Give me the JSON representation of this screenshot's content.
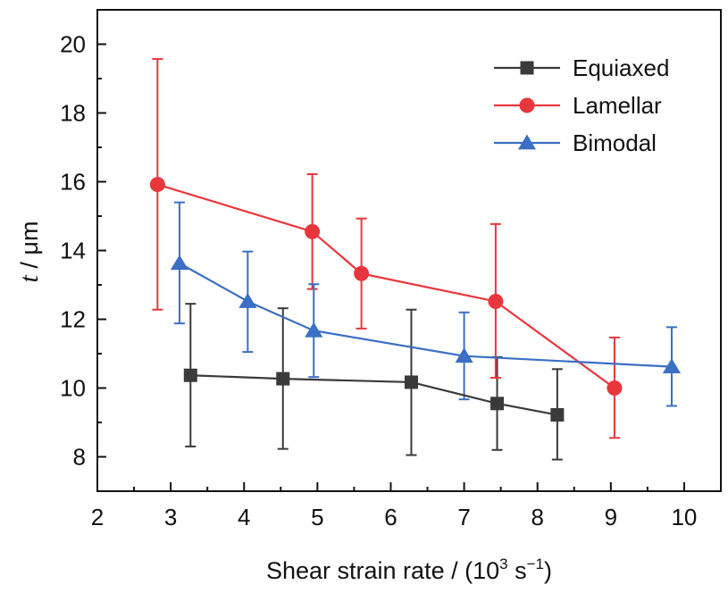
{
  "chart_data": {
    "type": "line",
    "xlabel": {
      "prefix": "Shear strain rate / (10",
      "exponent": "3",
      "mid": " s",
      "unit_exponent": "−1",
      "suffix": ")"
    },
    "ylabel": {
      "symbol": "t",
      "rest": " / μm"
    },
    "xlim": [
      2,
      10.5
    ],
    "ylim": [
      7,
      21
    ],
    "xticks": [
      2,
      3,
      4,
      5,
      6,
      7,
      8,
      9,
      10
    ],
    "xtick_labels": [
      "2",
      "3",
      "4",
      "5",
      "6",
      "7",
      "8",
      "9",
      "10"
    ],
    "yticks": [
      8,
      10,
      12,
      14,
      16,
      18,
      20
    ],
    "ytick_labels": [
      "8",
      "10",
      "12",
      "14",
      "16",
      "18",
      "20"
    ],
    "grid": false,
    "legend_position": "top-right",
    "series": [
      {
        "name": "Equiaxed",
        "marker": "square",
        "color": "#3a3a3a",
        "x": [
          3.27,
          4.53,
          6.28,
          7.45,
          8.27
        ],
        "y": [
          10.37,
          10.27,
          10.17,
          9.55,
          9.22
        ],
        "err_low": [
          8.3,
          8.23,
          8.05,
          8.2,
          7.92
        ],
        "err_high": [
          12.45,
          12.32,
          12.28,
          10.9,
          10.55
        ]
      },
      {
        "name": "Lamellar",
        "marker": "circle",
        "color": "#e8363d",
        "x": [
          2.82,
          4.93,
          5.6,
          7.43,
          9.05
        ],
        "y": [
          15.92,
          14.55,
          13.33,
          12.52,
          10.0
        ],
        "err_low": [
          12.28,
          12.88,
          11.73,
          10.3,
          8.55
        ],
        "err_high": [
          19.57,
          16.22,
          14.93,
          14.77,
          11.47
        ]
      },
      {
        "name": "Bimodal",
        "marker": "triangle",
        "color": "#3a6fc4",
        "x": [
          3.12,
          4.05,
          4.95,
          7.0,
          9.83
        ],
        "y": [
          13.63,
          12.52,
          11.67,
          10.93,
          10.62
        ],
        "err_low": [
          11.88,
          11.05,
          10.32,
          9.67,
          9.48
        ],
        "err_high": [
          15.4,
          13.97,
          13.02,
          12.2,
          11.77
        ]
      }
    ]
  }
}
